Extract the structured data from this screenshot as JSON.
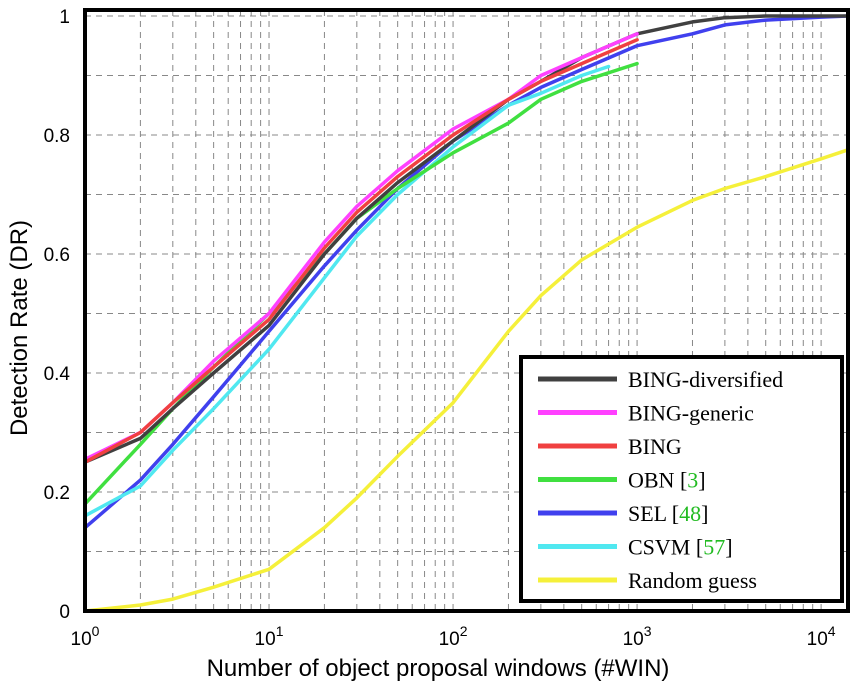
{
  "chart_data": {
    "type": "line",
    "title": "",
    "xlabel": "Number of object proposal windows (#WIN)",
    "ylabel": "Detection Rate (DR)",
    "x_scale": "log",
    "xlim": [
      1,
      14000
    ],
    "ylim": [
      0,
      1.01
    ],
    "grid": true,
    "legend_position": "bottom-right",
    "x_ticks": [
      {
        "value": 1,
        "base": "10",
        "exp": "0"
      },
      {
        "value": 10,
        "base": "10",
        "exp": "1"
      },
      {
        "value": 100,
        "base": "10",
        "exp": "2"
      },
      {
        "value": 1000,
        "base": "10",
        "exp": "3"
      },
      {
        "value": 10000,
        "base": "10",
        "exp": "4"
      }
    ],
    "y_ticks": [
      {
        "value": 0,
        "label": "0"
      },
      {
        "value": 0.2,
        "label": "0.2"
      },
      {
        "value": 0.4,
        "label": "0.4"
      },
      {
        "value": 0.6,
        "label": "0.6"
      },
      {
        "value": 0.8,
        "label": "0.8"
      },
      {
        "value": 1,
        "label": "1"
      }
    ],
    "series": [
      {
        "name": "Random guess",
        "label": "Random guess",
        "ref": "",
        "color": "#f5f03a",
        "x": [
          1,
          2,
          3,
          5,
          10,
          20,
          30,
          50,
          100,
          200,
          300,
          500,
          1000,
          2000,
          3000,
          5000,
          10000,
          14000
        ],
        "y": [
          0.0,
          0.01,
          0.02,
          0.04,
          0.07,
          0.14,
          0.19,
          0.26,
          0.35,
          0.47,
          0.53,
          0.59,
          0.645,
          0.69,
          0.71,
          0.73,
          0.76,
          0.775
        ]
      },
      {
        "name": "SEL [48]",
        "label": "SEL [",
        "ref": "48",
        "color": "#4040ee",
        "x": [
          1,
          2,
          3,
          5,
          10,
          20,
          30,
          50,
          100,
          200,
          300,
          500,
          1000,
          2000,
          3000,
          5000,
          10000,
          14000
        ],
        "y": [
          0.14,
          0.22,
          0.28,
          0.36,
          0.47,
          0.58,
          0.64,
          0.71,
          0.79,
          0.85,
          0.88,
          0.91,
          0.95,
          0.97,
          0.985,
          0.993,
          0.998,
          1.0
        ]
      },
      {
        "name": "CSVM [57]",
        "label": "CSVM [",
        "ref": "57",
        "color": "#50e8f0",
        "x": [
          1,
          2,
          3,
          5,
          10,
          20,
          30,
          50,
          100,
          200,
          300,
          500,
          700
        ],
        "y": [
          0.16,
          0.21,
          0.27,
          0.34,
          0.44,
          0.56,
          0.63,
          0.7,
          0.78,
          0.85,
          0.87,
          0.9,
          0.915
        ]
      },
      {
        "name": "OBN [3]",
        "label": "OBN [",
        "ref": "3",
        "color": "#40e040",
        "x": [
          1,
          2,
          3,
          5,
          10,
          20,
          30,
          50,
          100,
          200,
          300,
          500,
          1000
        ],
        "y": [
          0.18,
          0.28,
          0.34,
          0.41,
          0.5,
          0.6,
          0.66,
          0.71,
          0.77,
          0.82,
          0.86,
          0.89,
          0.92
        ]
      },
      {
        "name": "BING-diversified",
        "label": "BING-diversified",
        "ref": "",
        "color": "#404040",
        "x": [
          1,
          2,
          3,
          5,
          10,
          20,
          30,
          50,
          100,
          200,
          300,
          500,
          1000,
          2000,
          3000,
          5000,
          10000,
          14000
        ],
        "y": [
          0.25,
          0.29,
          0.34,
          0.4,
          0.48,
          0.6,
          0.66,
          0.72,
          0.79,
          0.86,
          0.89,
          0.93,
          0.97,
          0.99,
          0.997,
          1.0,
          1.0,
          1.0
        ]
      },
      {
        "name": "BING-generic",
        "label": "BING-generic",
        "ref": "",
        "color": "#ff40ff",
        "x": [
          1,
          2,
          3,
          5,
          10,
          20,
          30,
          50,
          100,
          200,
          300,
          500,
          1000
        ],
        "y": [
          0.255,
          0.3,
          0.35,
          0.42,
          0.5,
          0.62,
          0.68,
          0.74,
          0.81,
          0.86,
          0.9,
          0.93,
          0.97
        ]
      },
      {
        "name": "BING",
        "label": "BING",
        "ref": "",
        "color": "#f04040",
        "x": [
          1,
          2,
          3,
          5,
          10,
          20,
          30,
          50,
          100,
          200,
          300,
          500,
          1000
        ],
        "y": [
          0.25,
          0.3,
          0.35,
          0.41,
          0.49,
          0.61,
          0.67,
          0.73,
          0.8,
          0.86,
          0.89,
          0.92,
          0.96
        ]
      }
    ],
    "legend_order": [
      "BING-diversified",
      "BING-generic",
      "BING",
      "OBN [3]",
      "SEL [48]",
      "CSVM [57]",
      "Random guess"
    ]
  },
  "colors": {
    "reference_link": "#22bb22",
    "grid": "#888888",
    "frame": "#000000"
  }
}
